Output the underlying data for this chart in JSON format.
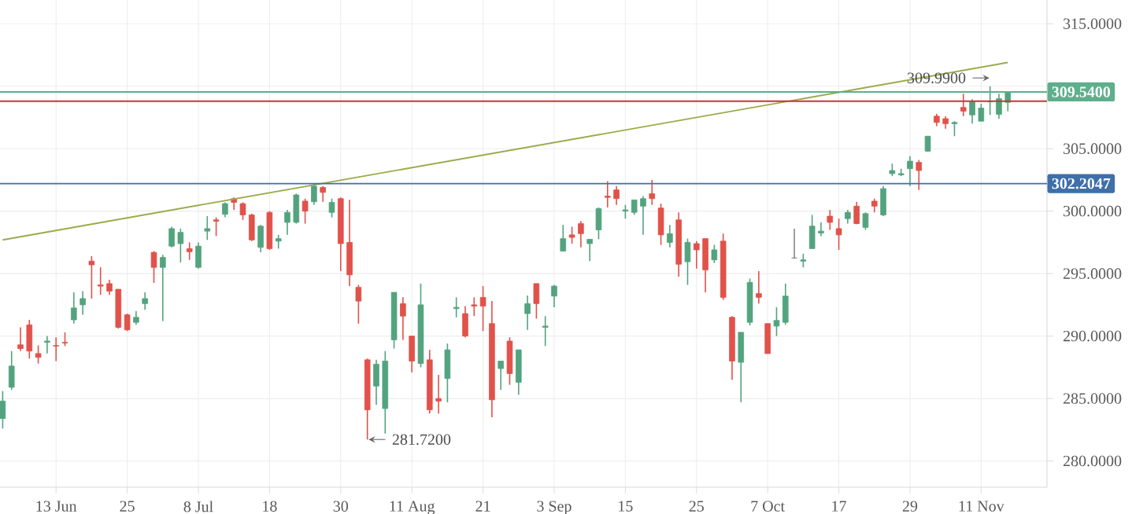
{
  "chart_data": {
    "type": "candlestick",
    "categories": [
      null,
      null,
      null,
      null,
      null,
      null,
      "13 Jun",
      null,
      null,
      null,
      null,
      null,
      null,
      null,
      "25",
      null,
      null,
      null,
      null,
      null,
      null,
      null,
      "8 Jul",
      null,
      null,
      null,
      null,
      null,
      null,
      null,
      "18",
      null,
      null,
      null,
      null,
      null,
      null,
      null,
      "30",
      null,
      null,
      null,
      null,
      null,
      null,
      null,
      "11 Aug",
      null,
      null,
      null,
      null,
      null,
      null,
      null,
      "21",
      null,
      null,
      null,
      null,
      null,
      null,
      null,
      "3 Sep",
      null,
      null,
      null,
      null,
      null,
      null,
      null,
      "15",
      null,
      null,
      null,
      null,
      null,
      null,
      null,
      "25",
      null,
      null,
      null,
      null,
      null,
      null,
      null,
      "7 Oct",
      null,
      null,
      null,
      null,
      null,
      null,
      null,
      "17",
      null,
      null,
      null,
      null,
      null,
      null,
      null,
      "29",
      null,
      null,
      null,
      null,
      null,
      null,
      null,
      "11 Nov",
      null,
      null,
      null
    ],
    "ohlc": [
      [
        283.4,
        285.6,
        282.6,
        284.8
      ],
      [
        285.9,
        288.8,
        285.7,
        287.6
      ],
      [
        289.3,
        290.7,
        288.8,
        289.0
      ],
      [
        290.9,
        291.3,
        288.2,
        288.8
      ],
      [
        288.6,
        289.25,
        287.8,
        288.3
      ],
      [
        289.5,
        290.0,
        288.6,
        289.6
      ],
      [
        289.25,
        289.9,
        288.0,
        289.2
      ],
      [
        289.5,
        290.3,
        289.2,
        289.45
      ],
      [
        291.3,
        293.5,
        291.0,
        292.25
      ],
      [
        292.5,
        293.6,
        291.7,
        293.0
      ],
      [
        296.0,
        296.4,
        293.0,
        295.7
      ],
      [
        294.1,
        295.5,
        293.3,
        294.0
      ],
      [
        294.2,
        294.5,
        293.3,
        293.6
      ],
      [
        293.75,
        293.75,
        290.6,
        290.7
      ],
      [
        291.7,
        291.8,
        290.4,
        290.5
      ],
      [
        291.1,
        292.0,
        290.9,
        291.5
      ],
      [
        292.6,
        293.5,
        292.1,
        293.0
      ],
      [
        296.7,
        296.8,
        294.25,
        295.5
      ],
      [
        295.5,
        296.5,
        291.2,
        296.3
      ],
      [
        297.2,
        298.75,
        297.1,
        298.6
      ],
      [
        297.4,
        298.6,
        295.9,
        298.3
      ],
      [
        297.0,
        297.5,
        296.1,
        296.75
      ],
      [
        295.5,
        297.5,
        295.4,
        297.2
      ],
      [
        298.4,
        299.6,
        297.7,
        298.6
      ],
      [
        299.3,
        299.5,
        298.0,
        299.2
      ],
      [
        299.75,
        300.7,
        299.5,
        300.6
      ],
      [
        301.0,
        301.1,
        300.1,
        300.7
      ],
      [
        300.6,
        300.7,
        299.3,
        299.7
      ],
      [
        299.7,
        299.8,
        297.6,
        297.7
      ],
      [
        297.1,
        298.9,
        296.7,
        298.8
      ],
      [
        299.9,
        300.0,
        296.9,
        297.0
      ],
      [
        297.6,
        298.1,
        297.0,
        297.8
      ],
      [
        299.1,
        300.1,
        298.1,
        299.9
      ],
      [
        299.1,
        301.4,
        299.0,
        301.3
      ],
      [
        300.8,
        301.0,
        299.0,
        300.0
      ],
      [
        300.75,
        302.2,
        300.5,
        302.0
      ],
      [
        301.9,
        302.0,
        300.75,
        301.5
      ],
      [
        299.9,
        301.0,
        299.5,
        300.7
      ],
      [
        301.0,
        301.1,
        295.2,
        297.4
      ],
      [
        297.5,
        300.9,
        294.0,
        294.9
      ],
      [
        293.9,
        294.1,
        291.0,
        292.8
      ],
      [
        288.1,
        288.2,
        281.72,
        284.1
      ],
      [
        286.0,
        288.1,
        284.5,
        287.75
      ],
      [
        284.2,
        288.8,
        282.2,
        288.0
      ],
      [
        289.7,
        293.5,
        289.0,
        293.5
      ],
      [
        292.6,
        293.1,
        289.7,
        291.6
      ],
      [
        290.0,
        290.0,
        287.1,
        288.0
      ],
      [
        287.8,
        294.2,
        287.5,
        292.5
      ],
      [
        288.1,
        288.9,
        283.8,
        284.1
      ],
      [
        285.0,
        286.9,
        283.8,
        284.8
      ],
      [
        286.6,
        289.4,
        284.7,
        288.9
      ],
      [
        292.2,
        293.1,
        291.5,
        292.3
      ],
      [
        291.8,
        292.4,
        289.9,
        290.0
      ],
      [
        292.5,
        293.1,
        291.6,
        292.4
      ],
      [
        293.1,
        294.0,
        290.4,
        292.4
      ],
      [
        291.0,
        292.8,
        283.5,
        284.9
      ],
      [
        287.4,
        288.0,
        285.7,
        288.0
      ],
      [
        289.6,
        289.9,
        286.1,
        287.0
      ],
      [
        286.3,
        288.9,
        285.3,
        288.9
      ],
      [
        291.8,
        293.25,
        290.5,
        292.6
      ],
      [
        294.2,
        294.2,
        291.4,
        292.6
      ],
      [
        290.7,
        291.6,
        289.2,
        290.8
      ],
      [
        293.2,
        294.1,
        292.3,
        294.0
      ],
      [
        296.8,
        298.9,
        296.8,
        297.8
      ],
      [
        298.1,
        298.75,
        297.4,
        297.9
      ],
      [
        299.0,
        299.2,
        297.1,
        298.2
      ],
      [
        297.4,
        297.75,
        296.0,
        297.75
      ],
      [
        298.5,
        300.3,
        297.75,
        300.2
      ],
      [
        301.2,
        302.4,
        300.3,
        301.1
      ],
      [
        301.7,
        302.0,
        300.5,
        301.0
      ],
      [
        300.0,
        300.5,
        299.4,
        300.1
      ],
      [
        299.9,
        300.9,
        299.7,
        300.9
      ],
      [
        300.4,
        301.2,
        298.1,
        301.0
      ],
      [
        301.4,
        302.5,
        300.5,
        301.0
      ],
      [
        300.25,
        300.6,
        297.3,
        298.1
      ],
      [
        297.5,
        298.9,
        297.1,
        298.2
      ],
      [
        299.3,
        299.9,
        294.75,
        295.75
      ],
      [
        295.95,
        297.8,
        294.1,
        297.5
      ],
      [
        297.4,
        297.6,
        295.4,
        296.9
      ],
      [
        297.8,
        297.8,
        293.5,
        295.3
      ],
      [
        296.1,
        297.3,
        295.85,
        296.9
      ],
      [
        297.6,
        298.2,
        292.9,
        293.1
      ],
      [
        291.5,
        291.6,
        286.5,
        288.0
      ],
      [
        287.9,
        290.3,
        284.7,
        290.3
      ],
      [
        291.1,
        294.6,
        290.85,
        294.3
      ],
      [
        293.4,
        295.2,
        292.6,
        293.1
      ],
      [
        291.0,
        291.0,
        288.6,
        288.6
      ],
      [
        290.8,
        292.3,
        290.0,
        291.25
      ],
      [
        291.1,
        294.2,
        290.9,
        293.2
      ],
      [
        296.25,
        298.6,
        296.2,
        296.25
      ],
      [
        296.0,
        296.6,
        295.5,
        296.1
      ],
      [
        297.0,
        299.7,
        297.0,
        298.8
      ],
      [
        298.25,
        299.1,
        298.0,
        298.4
      ],
      [
        299.6,
        300.1,
        298.5,
        299.1
      ],
      [
        298.6,
        299.4,
        296.9,
        298.1
      ],
      [
        299.4,
        300.1,
        299.0,
        299.9
      ],
      [
        300.4,
        300.75,
        298.95,
        299.0
      ],
      [
        298.7,
        299.9,
        298.5,
        299.8
      ],
      [
        300.8,
        301.0,
        299.9,
        300.4
      ],
      [
        299.7,
        302.0,
        299.6,
        301.8
      ],
      [
        303.0,
        303.8,
        302.8,
        303.25
      ],
      [
        302.9,
        303.4,
        302.8,
        303.0
      ],
      [
        303.4,
        304.4,
        302.0,
        304.0
      ],
      [
        303.9,
        304.1,
        301.7,
        303.25
      ],
      [
        304.8,
        306.0,
        304.75,
        306.0
      ],
      [
        307.6,
        307.8,
        306.8,
        307.1
      ],
      [
        307.4,
        307.6,
        306.6,
        307.0
      ],
      [
        307.0,
        307.2,
        306.0,
        307.1
      ],
      [
        308.3,
        309.4,
        307.6,
        308.0
      ],
      [
        307.7,
        308.95,
        307.0,
        308.75
      ],
      [
        307.2,
        308.6,
        307.2,
        308.25
      ],
      [
        308.75,
        309.99,
        307.7,
        308.8
      ],
      [
        307.75,
        309.4,
        307.4,
        309.0
      ],
      [
        308.7,
        309.6,
        308.0,
        309.54
      ]
    ],
    "colors": [
      "#53a37f",
      "#53a37f",
      "#e0524a",
      "#e0524a",
      "#e0524a",
      "#53a37f",
      "#e0524a",
      "#e0524a",
      "#53a37f",
      "#53a37f",
      "#e0524a",
      "#e0524a",
      "#e0524a",
      "#e0524a",
      "#e0524a",
      "#53a37f",
      "#53a37f",
      "#e0524a",
      "#53a37f",
      "#53a37f",
      "#53a37f",
      "#e0524a",
      "#53a37f",
      "#53a37f",
      "#e0524a",
      "#53a37f",
      "#e0524a",
      "#e0524a",
      "#e0524a",
      "#53a37f",
      "#e0524a",
      "#53a37f",
      "#53a37f",
      "#53a37f",
      "#e0524a",
      "#53a37f",
      "#e0524a",
      "#53a37f",
      "#e0524a",
      "#e0524a",
      "#e0524a",
      "#e0524a",
      "#53a37f",
      "#53a37f",
      "#53a37f",
      "#e0524a",
      "#e0524a",
      "#53a37f",
      "#e0524a",
      "#e0524a",
      "#53a37f",
      "#53a37f",
      "#e0524a",
      "#e0524a",
      "#e0524a",
      "#e0524a",
      "#53a37f",
      "#e0524a",
      "#53a37f",
      "#53a37f",
      "#e0524a",
      "#53a37f",
      "#53a37f",
      "#53a37f",
      "#e0524a",
      "#e0524a",
      "#53a37f",
      "#53a37f",
      "#e0524a",
      "#e0524a",
      "#53a37f",
      "#53a37f",
      "#53a37f",
      "#e0524a",
      "#e0524a",
      "#53a37f",
      "#e0524a",
      "#53a37f",
      "#e0524a",
      "#e0524a",
      "#53a37f",
      "#e0524a",
      "#e0524a",
      "#53a37f",
      "#53a37f",
      "#e0524a",
      "#e0524a",
      "#53a37f",
      "#53a37f",
      "#888888",
      "#53a37f",
      "#53a37f",
      "#53a37f",
      "#e0524a",
      "#e0524a",
      "#53a37f",
      "#e0524a",
      "#53a37f",
      "#e0524a",
      "#53a37f",
      "#53a37f",
      "#53a37f",
      "#53a37f",
      "#e0524a",
      "#53a37f",
      "#e0524a",
      "#e0524a",
      "#53a37f",
      "#e0524a",
      "#53a37f",
      "#53a37f",
      "#53a37f",
      "#53a37f",
      "#53a37f"
    ],
    "series": [
      {
        "type": "line",
        "color": "#9aab4a",
        "values": [
          297.7,
          null,
          null,
          null,
          null,
          null,
          null,
          null,
          null,
          null,
          null,
          null,
          null,
          null,
          null,
          null,
          null,
          null,
          null,
          null,
          null,
          null,
          null,
          null,
          null,
          null,
          null,
          null,
          null,
          null,
          null,
          null,
          null,
          null,
          null,
          null,
          null,
          null,
          null,
          null,
          null,
          null,
          null,
          null,
          null,
          null,
          null,
          null,
          null,
          null,
          null,
          null,
          null,
          null,
          null,
          null,
          null,
          null,
          null,
          null,
          null,
          null,
          null,
          null,
          null,
          null,
          null,
          null,
          null,
          null,
          null,
          null,
          null,
          null,
          null,
          null,
          null,
          null,
          null,
          null,
          null,
          null,
          null,
          null,
          null,
          null,
          null,
          null,
          null,
          null,
          null,
          null,
          null,
          null,
          null,
          null,
          null,
          null,
          null,
          null,
          null,
          null,
          null,
          null,
          null,
          null,
          null,
          null,
          null,
          null,
          null,
          null,
          null,
          311.9
        ]
      }
    ],
    "ylim": [
      277.9,
      316.9
    ],
    "yticks": [
      {
        "value": 280,
        "label": "280.0000"
      },
      {
        "value": 285,
        "label": "285.0000"
      },
      {
        "value": 290,
        "label": "290.0000"
      },
      {
        "value": 295,
        "label": "295.0000"
      },
      {
        "value": 300,
        "label": "300.0000"
      },
      {
        "value": 305,
        "label": "305.0000"
      },
      {
        "value": 310,
        "label": null
      },
      {
        "value": 315,
        "label": "315.0000"
      }
    ],
    "ref_lines": [
      {
        "axis": "y",
        "value": 309.54,
        "label": "309.5400",
        "color": "#5fae8c"
      },
      {
        "axis": "y",
        "value": 302.2047,
        "label": "302.2047",
        "color": "#3f6fa8"
      },
      {
        "axis": "y",
        "value": 308.8,
        "color": "#c0393b"
      }
    ],
    "annotations": [
      "281.7200",
      "309.9900"
    ],
    "grid": true
  }
}
